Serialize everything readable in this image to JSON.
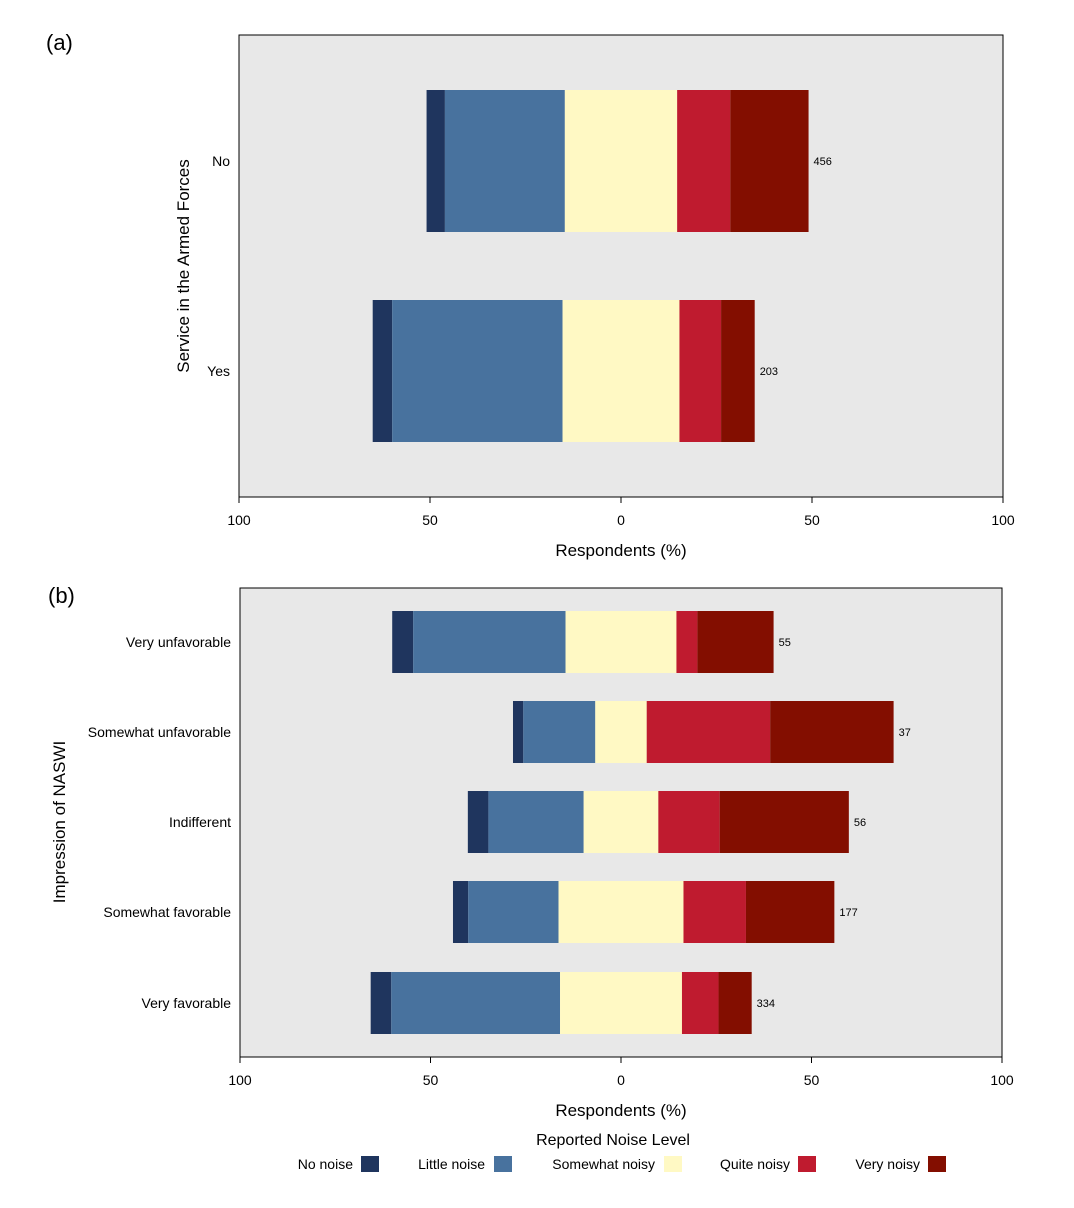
{
  "legend": {
    "title": "Reported Noise Level",
    "items": [
      "No noise",
      "Little noise",
      "Somewhat noisy",
      "Quite noisy",
      "Very noisy"
    ]
  },
  "colors": {
    "No noise": "#1f355e",
    "Little noise": "#48729e",
    "Somewhat noisy": "#fff9c4",
    "Quite noisy": "#bf1b2f",
    "Very noisy": "#830e00",
    "panel_bg": "#e8e8e8"
  },
  "chart_data": [
    {
      "panel": "(a)",
      "type": "bar",
      "orientation": "horizontal-diverging",
      "ylabel": "Service in the Armed Forces",
      "xlabel": "Respondents (%)",
      "xlim": [
        -100,
        100
      ],
      "xticks": [
        -100,
        -50,
        0,
        50,
        100
      ],
      "xtick_labels": [
        "100",
        "50",
        "0",
        "50",
        "100"
      ],
      "categories": [
        "No",
        "Yes"
      ],
      "n_labels": [
        "456",
        "203"
      ],
      "series": [
        {
          "name": "No noise",
          "values": [
            4.8,
            5.1
          ]
        },
        {
          "name": "Little noise",
          "values": [
            31.4,
            44.6
          ]
        },
        {
          "name": "Somewhat noisy",
          "values": [
            29.4,
            30.6
          ]
        },
        {
          "name": "Quite noisy",
          "values": [
            13.9,
            10.9
          ]
        },
        {
          "name": "Very noisy",
          "values": [
            20.5,
            8.8
          ]
        }
      ]
    },
    {
      "panel": "(b)",
      "type": "bar",
      "orientation": "horizontal-diverging",
      "ylabel": "Impression of NASWI",
      "xlabel": "Respondents (%)",
      "xlim": [
        -100,
        100
      ],
      "xticks": [
        -100,
        -50,
        0,
        50,
        100
      ],
      "xtick_labels": [
        "100",
        "50",
        "0",
        "50",
        "100"
      ],
      "categories": [
        "Very unfavorable",
        "Somewhat unfavorable",
        "Indifferent",
        "Somewhat favorable",
        "Very favorable"
      ],
      "n_labels": [
        "55",
        "37",
        "56",
        "177",
        "334"
      ],
      "series": [
        {
          "name": "No noise",
          "values": [
            5.5,
            2.7,
            5.4,
            4.0,
            5.4
          ]
        },
        {
          "name": "Little noise",
          "values": [
            40.0,
            18.9,
            25.0,
            23.7,
            44.3
          ]
        },
        {
          "name": "Somewhat noisy",
          "values": [
            29.1,
            13.5,
            19.6,
            32.8,
            32.0
          ]
        },
        {
          "name": "Quite noisy",
          "values": [
            5.5,
            32.4,
            16.1,
            16.4,
            9.6
          ]
        },
        {
          "name": "Very noisy",
          "values": [
            20.0,
            32.4,
            33.9,
            23.2,
            8.7
          ]
        }
      ]
    }
  ]
}
